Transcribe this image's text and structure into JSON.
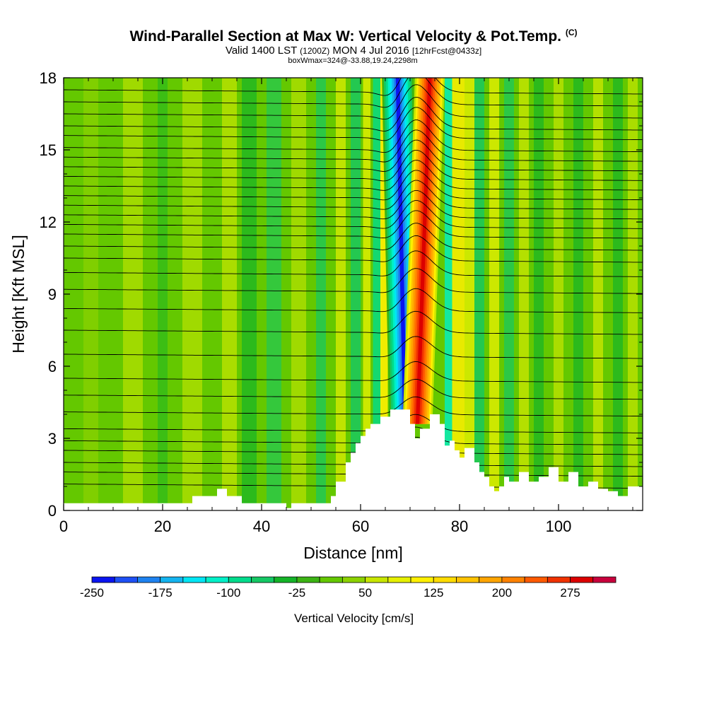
{
  "header": {
    "title": "Wind-Parallel Section at Max W: Vertical Velocity & Pot.Temp.",
    "copyright": "(C)",
    "valid_prefix": "Valid 1400 LST",
    "valid_zulu": "(1200Z)",
    "valid_date": "MON 4 Jul 2016",
    "forecast": "[12hrFcst@0433z]",
    "box_info": "boxWmax=324@-33.88,19.24,2298m"
  },
  "chart_data": {
    "type": "heatmap",
    "title": "Wind-Parallel Section at Max W: Vertical Velocity & Pot.Temp.",
    "xlabel": "Distance [nm]",
    "ylabel": "Height [Kft MSL]",
    "xlim": [
      0,
      117
    ],
    "ylim": [
      0,
      18
    ],
    "x_ticks": [
      0,
      20,
      40,
      60,
      80,
      100
    ],
    "y_ticks": [
      0,
      3,
      6,
      9,
      12,
      15,
      18
    ],
    "x_tick_labels": [
      "0",
      "20",
      "40",
      "60",
      "80",
      "100"
    ],
    "y_tick_labels": [
      "0",
      "3",
      "6",
      "9",
      "12",
      "15",
      "18"
    ],
    "colorbar": {
      "title": "Vertical Velocity [cm/s]",
      "min": -250,
      "max": 325,
      "step": 25,
      "labels": [
        "-250",
        "-175",
        "-100",
        "-25",
        "50",
        "125",
        "200",
        "275"
      ],
      "label_values": [
        -250,
        -175,
        -100,
        -25,
        50,
        125,
        200,
        275
      ],
      "colors": [
        "#0a14f0",
        "#1e50f5",
        "#1e82f0",
        "#14b4f0",
        "#00e6f5",
        "#00f0c8",
        "#00dc8c",
        "#14c864",
        "#14b428",
        "#3cb414",
        "#64c800",
        "#8cd200",
        "#c8e600",
        "#e6f000",
        "#fff000",
        "#ffdc00",
        "#ffc300",
        "#ffa500",
        "#ff8200",
        "#ff5a00",
        "#f03200",
        "#dc0000",
        "#c8003c"
      ]
    },
    "background_w": 0,
    "updraft_core": {
      "x_bottom": 71.5,
      "x_top": 74,
      "wmax": 324
    },
    "downdraft_core": {
      "x_bottom": 69,
      "x_top": 67.5,
      "wmin": -250
    },
    "terrain_profile": {
      "x": [
        0,
        8,
        16,
        24,
        26,
        28,
        30,
        31,
        33,
        36,
        40,
        44,
        45,
        46,
        50,
        53,
        54,
        55,
        57,
        58,
        59,
        60,
        61,
        62,
        64,
        66,
        68,
        70,
        71,
        72,
        74,
        76,
        77,
        78,
        79,
        80,
        81,
        82,
        83,
        84,
        85,
        86,
        87,
        88,
        89,
        90,
        92,
        94,
        96,
        98,
        100,
        102,
        104,
        106,
        108,
        110,
        112,
        114,
        117
      ],
      "y": [
        0.3,
        0.3,
        0.3,
        0.3,
        0.6,
        0.6,
        0.6,
        0.9,
        0.6,
        0.3,
        0.3,
        0.3,
        0.1,
        0.3,
        0.3,
        0.3,
        0.6,
        1.2,
        2.0,
        2.4,
        2.8,
        3.1,
        3.4,
        3.6,
        3.9,
        4.2,
        4.2,
        3.6,
        3.0,
        3.4,
        4.0,
        3.6,
        2.7,
        2.9,
        2.5,
        2.2,
        2.6,
        2.6,
        2.0,
        1.6,
        1.4,
        1.0,
        0.8,
        1.0,
        1.4,
        1.2,
        1.6,
        1.2,
        1.4,
        1.8,
        1.2,
        1.6,
        1.0,
        1.2,
        0.9,
        0.8,
        0.6,
        1.0,
        1.2
      ]
    },
    "isentropes_y_left": [
      1.1,
      1.6,
      2.0,
      2.5,
      2.9,
      3.4,
      4.1,
      4.8,
      5.5,
      6.5,
      7.5,
      8.4,
      9.2,
      9.9,
      10.5,
      11.0,
      11.5,
      11.9,
      12.3,
      12.7,
      13.1,
      13.5,
      13.9,
      14.3,
      14.7,
      15.1,
      15.6,
      16.0,
      16.5,
      17.0,
      17.5
    ],
    "isentrope_wave": {
      "amplitude": 0.9,
      "center_x": 71,
      "width": 4.5
    }
  }
}
